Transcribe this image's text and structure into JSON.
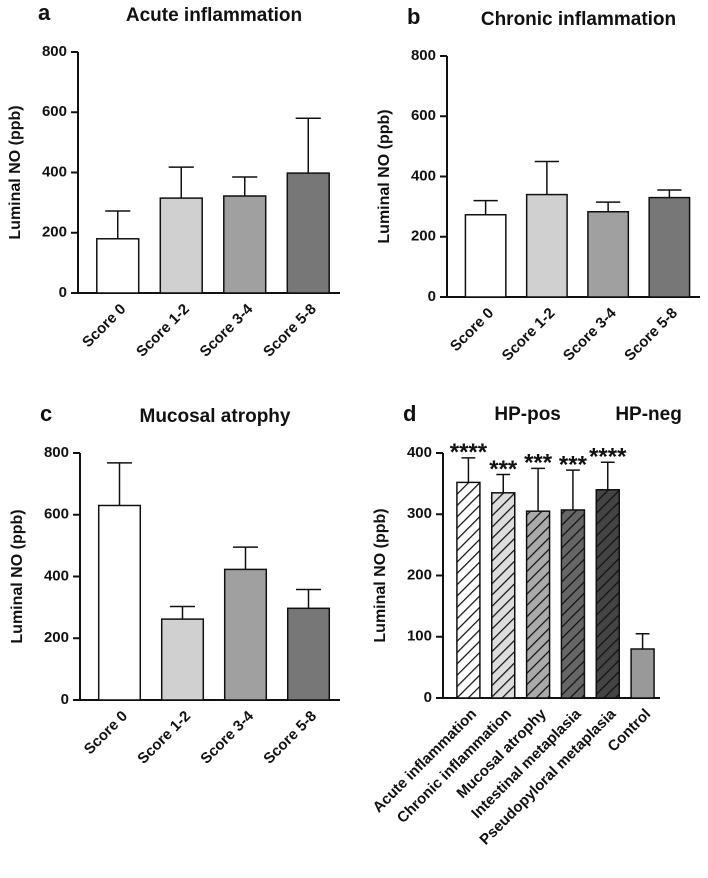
{
  "chart_data": [
    {
      "type": "bar",
      "panel": "a",
      "title": "Acute inflammation",
      "y_label": "Luminal NO (ppb)",
      "categories": [
        "Score 0",
        "Score 1-2",
        "Score 3-4",
        "Score 5-8"
      ],
      "values": [
        180,
        315,
        322,
        398
      ],
      "errors": [
        92,
        103,
        63,
        182
      ],
      "colors": [
        "#ffffff",
        "#d0d0d0",
        "#a0a0a0",
        "#777777"
      ],
      "ylim": [
        0,
        800
      ],
      "yticks": [
        0,
        200,
        400,
        600,
        800
      ]
    },
    {
      "type": "bar",
      "panel": "b",
      "title": "Chronic inflammation",
      "y_label": "Luminal NO (ppb)",
      "categories": [
        "Score 0",
        "Score 1-2",
        "Score 3-4",
        "Score 5-8"
      ],
      "values": [
        273,
        340,
        283,
        330
      ],
      "errors": [
        47,
        110,
        32,
        25
      ],
      "colors": [
        "#ffffff",
        "#d0d0d0",
        "#a0a0a0",
        "#777777"
      ],
      "ylim": [
        0,
        800
      ],
      "yticks": [
        0,
        200,
        400,
        600,
        800
      ]
    },
    {
      "type": "bar",
      "panel": "c",
      "title": "Mucosal atrophy",
      "y_label": "Luminal NO (ppb)",
      "categories": [
        "Score 0",
        "Score 1-2",
        "Score 3-4",
        "Score 5-8"
      ],
      "values": [
        630,
        262,
        423,
        297
      ],
      "errors": [
        138,
        41,
        72,
        61
      ],
      "colors": [
        "#ffffff",
        "#d0d0d0",
        "#a0a0a0",
        "#777777"
      ],
      "ylim": [
        0,
        800
      ],
      "yticks": [
        0,
        200,
        400,
        600,
        800
      ]
    },
    {
      "type": "bar",
      "panel": "d",
      "y_label": "Luminal NO (ppb)",
      "categories": [
        "Acute inflammation",
        "Chronic inflammation",
        "Mucosal atrophy",
        "Intestinal metaplasia",
        "Pseudopyloral metaplasia",
        "Control"
      ],
      "values": [
        352,
        335,
        305,
        307,
        340,
        80
      ],
      "errors": [
        40,
        30,
        70,
        65,
        45,
        25
      ],
      "colors": [
        "#ffffff",
        "#dddddd",
        "#aaaaaa",
        "#666666",
        "#444444",
        "#999999"
      ],
      "hatched": [
        true,
        true,
        true,
        true,
        true,
        false
      ],
      "annotations": [
        "****",
        "***",
        "***",
        "***",
        "****",
        null
      ],
      "group_labels": [
        "HP-pos",
        "HP-neg"
      ],
      "ylim": [
        0,
        400
      ],
      "yticks": [
        0,
        100,
        200,
        300,
        400
      ]
    }
  ]
}
